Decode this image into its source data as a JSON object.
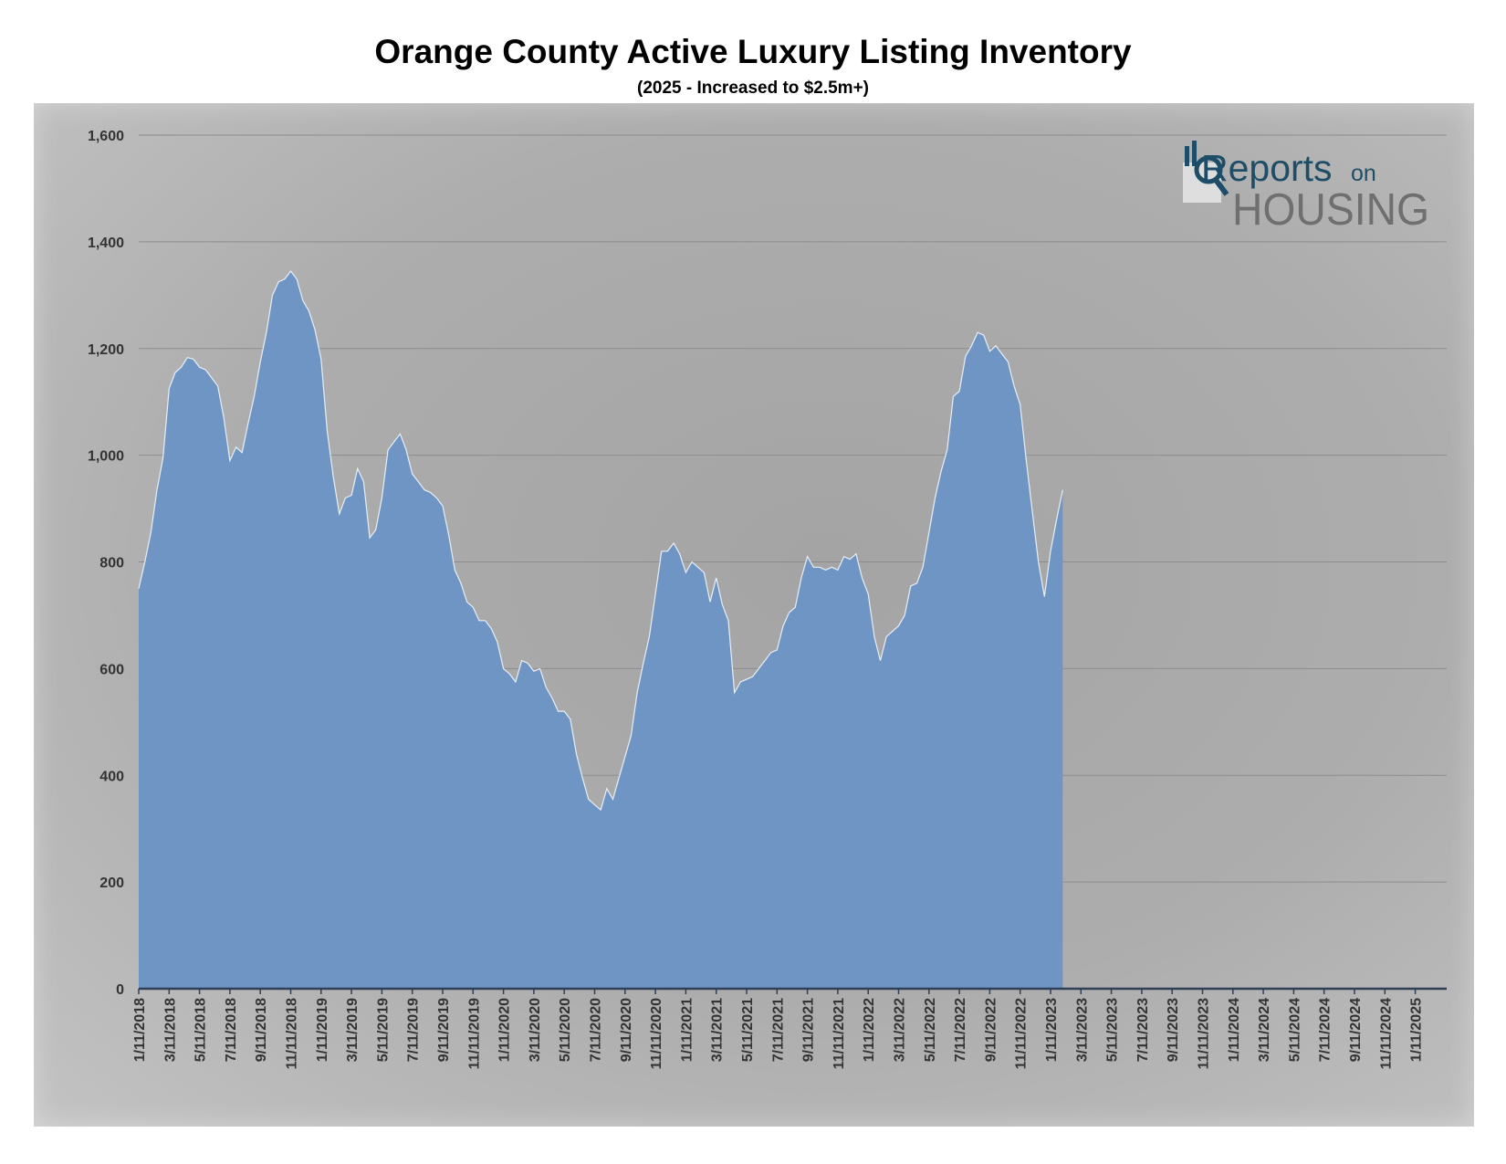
{
  "logo": {
    "reports": "Reports",
    "on": "on",
    "housing": "HOUSING"
  },
  "chart_data": {
    "type": "area",
    "title": "Orange County Active Luxury Listing Inventory",
    "subtitle": "(2025 - Increased to $2.5m+)",
    "xlabel": "",
    "ylabel": "",
    "ylim": [
      0,
      1600
    ],
    "yticks": [
      0,
      200,
      400,
      600,
      800,
      1000,
      1200,
      1400,
      1600
    ],
    "ytick_labels": [
      "0",
      "200",
      "400",
      "600",
      "800",
      "1,000",
      "1,200",
      "1,400",
      "1,600"
    ],
    "xtick_labels": [
      "1/11/2018",
      "3/11/2018",
      "5/11/2018",
      "7/11/2018",
      "9/11/2018",
      "11/11/2018",
      "1/11/2019",
      "3/11/2019",
      "5/11/2019",
      "7/11/2019",
      "9/11/2019",
      "11/11/2019",
      "1/11/2020",
      "3/11/2020",
      "5/11/2020",
      "7/11/2020",
      "9/11/2020",
      "11/11/2020",
      "1/11/2021",
      "3/11/2021",
      "5/11/2021",
      "7/11/2021",
      "9/11/2021",
      "11/11/2021",
      "1/11/2022",
      "3/11/2022",
      "5/11/2022",
      "7/11/2022",
      "9/11/2022",
      "11/11/2022",
      "1/11/2023",
      "3/11/2023",
      "5/11/2023",
      "7/11/2023",
      "9/11/2023",
      "11/11/2023",
      "1/11/2024",
      "3/11/2024",
      "5/11/2024",
      "7/11/2024",
      "9/11/2024",
      "11/11/2024",
      "1/11/2025"
    ],
    "grid": true,
    "legend": "none",
    "fill_color": "#6e95c3",
    "line_color": "#e8eef6",
    "series": [
      {
        "values": [
          [
            0,
            750
          ],
          [
            0.2,
            800
          ],
          [
            0.4,
            855
          ],
          [
            0.6,
            935
          ],
          [
            0.8,
            995
          ],
          [
            1.0,
            1125
          ],
          [
            1.2,
            1155
          ],
          [
            1.4,
            1165
          ],
          [
            1.6,
            1183
          ],
          [
            1.8,
            1180
          ],
          [
            2.0,
            1165
          ],
          [
            2.2,
            1160
          ],
          [
            2.4,
            1145
          ],
          [
            2.6,
            1130
          ],
          [
            2.8,
            1070
          ],
          [
            3.0,
            990
          ],
          [
            3.2,
            1015
          ],
          [
            3.4,
            1005
          ],
          [
            3.6,
            1060
          ],
          [
            3.8,
            1110
          ],
          [
            4.0,
            1175
          ],
          [
            4.2,
            1230
          ],
          [
            4.4,
            1300
          ],
          [
            4.6,
            1325
          ],
          [
            4.8,
            1330
          ],
          [
            5.0,
            1345
          ],
          [
            5.2,
            1330
          ],
          [
            5.4,
            1290
          ],
          [
            5.6,
            1270
          ],
          [
            5.8,
            1235
          ],
          [
            6.0,
            1180
          ],
          [
            6.2,
            1045
          ],
          [
            6.4,
            960
          ],
          [
            6.6,
            890
          ],
          [
            6.8,
            920
          ],
          [
            7.0,
            925
          ],
          [
            7.2,
            975
          ],
          [
            7.4,
            950
          ],
          [
            7.6,
            845
          ],
          [
            7.8,
            860
          ],
          [
            8.0,
            920
          ],
          [
            8.2,
            1010
          ],
          [
            8.4,
            1025
          ],
          [
            8.6,
            1040
          ],
          [
            8.8,
            1010
          ],
          [
            9.0,
            965
          ],
          [
            9.2,
            950
          ],
          [
            9.4,
            935
          ],
          [
            9.6,
            930
          ],
          [
            9.8,
            920
          ],
          [
            10.0,
            905
          ],
          [
            10.2,
            850
          ],
          [
            10.4,
            785
          ],
          [
            10.6,
            760
          ],
          [
            10.8,
            725
          ],
          [
            11.0,
            715
          ],
          [
            11.2,
            690
          ],
          [
            11.4,
            690
          ],
          [
            11.6,
            675
          ],
          [
            11.8,
            650
          ],
          [
            12.0,
            600
          ],
          [
            12.2,
            590
          ],
          [
            12.4,
            575
          ],
          [
            12.6,
            615
          ],
          [
            12.8,
            610
          ],
          [
            13.0,
            595
          ],
          [
            13.2,
            600
          ],
          [
            13.4,
            565
          ],
          [
            13.6,
            545
          ],
          [
            13.8,
            520
          ],
          [
            14.0,
            520
          ],
          [
            14.2,
            505
          ],
          [
            14.4,
            440
          ],
          [
            14.6,
            395
          ],
          [
            14.8,
            355
          ],
          [
            15.0,
            345
          ],
          [
            15.2,
            335
          ],
          [
            15.4,
            375
          ],
          [
            15.6,
            355
          ],
          [
            15.8,
            395
          ],
          [
            16.0,
            435
          ],
          [
            16.2,
            475
          ],
          [
            16.4,
            555
          ],
          [
            16.6,
            610
          ],
          [
            16.8,
            660
          ],
          [
            17.0,
            740
          ],
          [
            17.2,
            820
          ],
          [
            17.4,
            820
          ],
          [
            17.6,
            835
          ],
          [
            17.8,
            815
          ],
          [
            18.0,
            780
          ],
          [
            18.2,
            800
          ],
          [
            18.4,
            790
          ],
          [
            18.6,
            780
          ],
          [
            18.8,
            725
          ],
          [
            19.0,
            770
          ],
          [
            19.2,
            720
          ],
          [
            19.4,
            690
          ],
          [
            19.6,
            555
          ],
          [
            19.8,
            575
          ],
          [
            20.0,
            580
          ],
          [
            20.2,
            585
          ],
          [
            20.4,
            600
          ],
          [
            20.6,
            615
          ],
          [
            20.8,
            630
          ],
          [
            21.0,
            635
          ],
          [
            21.2,
            680
          ],
          [
            21.4,
            705
          ],
          [
            21.6,
            715
          ],
          [
            21.8,
            770
          ],
          [
            22.0,
            810
          ],
          [
            22.2,
            790
          ],
          [
            22.4,
            790
          ],
          [
            22.6,
            785
          ],
          [
            22.8,
            790
          ],
          [
            23.0,
            785
          ],
          [
            23.2,
            810
          ],
          [
            23.4,
            805
          ],
          [
            23.6,
            815
          ],
          [
            23.8,
            770
          ],
          [
            24.0,
            740
          ],
          [
            24.2,
            660
          ],
          [
            24.4,
            615
          ],
          [
            24.6,
            660
          ],
          [
            24.8,
            670
          ],
          [
            25.0,
            680
          ],
          [
            25.2,
            700
          ],
          [
            25.4,
            755
          ],
          [
            25.6,
            760
          ],
          [
            25.8,
            790
          ],
          [
            26.0,
            855
          ],
          [
            26.2,
            920
          ],
          [
            26.4,
            970
          ],
          [
            26.6,
            1010
          ],
          [
            26.8,
            1110
          ],
          [
            27.0,
            1120
          ],
          [
            27.2,
            1185
          ],
          [
            27.4,
            1205
          ],
          [
            27.6,
            1230
          ],
          [
            27.8,
            1225
          ],
          [
            28.0,
            1195
          ],
          [
            28.2,
            1205
          ],
          [
            28.4,
            1190
          ],
          [
            28.6,
            1175
          ],
          [
            28.8,
            1130
          ],
          [
            29.0,
            1095
          ],
          [
            29.2,
            990
          ],
          [
            29.4,
            895
          ],
          [
            29.6,
            800
          ],
          [
            29.8,
            735
          ],
          [
            30.0,
            820
          ],
          [
            30.2,
            880
          ],
          [
            30.4,
            935
          ]
        ]
      }
    ]
  }
}
